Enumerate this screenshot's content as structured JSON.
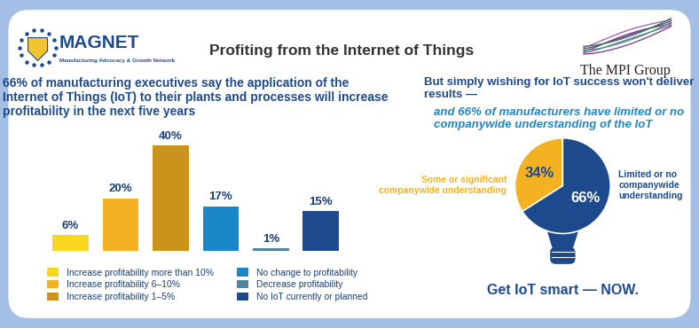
{
  "header": {
    "logo": "MAGNET",
    "logo_subtitle": "Manufacturing Advocacy & Growth Network",
    "title": "Profiting from the Internet of Things",
    "partner": "The MPI Group"
  },
  "chart_data": [
    {
      "type": "bar",
      "title": "66% of manufacturing executives say the application of the Internet of Things (IoT) to their plants and processes will increase profitability in the next five years",
      "categories": [
        "Increase profitability more than 10%",
        "Increase profitability 6–10%",
        "Increase profitability 1–5%",
        "No change to profitability",
        "Decrease profitability",
        "No IoT currently or planned"
      ],
      "values": [
        6,
        20,
        40,
        17,
        1,
        15
      ],
      "value_labels": [
        "6%",
        "20%",
        "40%",
        "17%",
        "1%",
        "15%"
      ],
      "colors": [
        "#F9D71C",
        "#F4B223",
        "#C9931C",
        "#1B87C6",
        "#4F87A0",
        "#1C4A8D"
      ],
      "data_labels": true,
      "tick_labels": false,
      "legend": "lower left"
    },
    {
      "type": "pie",
      "title": "But simply wishing for IoT success won't deliver results —",
      "subtitle": "and 66% of manufacturers have limited or no companywide understanding of the IoT",
      "categories": [
        "Some or significant companywide understanding",
        "Limited or no companywide understanding"
      ],
      "values": [
        34,
        66
      ],
      "value_labels": [
        "34%",
        "66%"
      ],
      "colors": [
        "#F4B223",
        "#1C4A8D"
      ],
      "data_labels": true
    }
  ],
  "footer": "Get IoT smart — NOW."
}
